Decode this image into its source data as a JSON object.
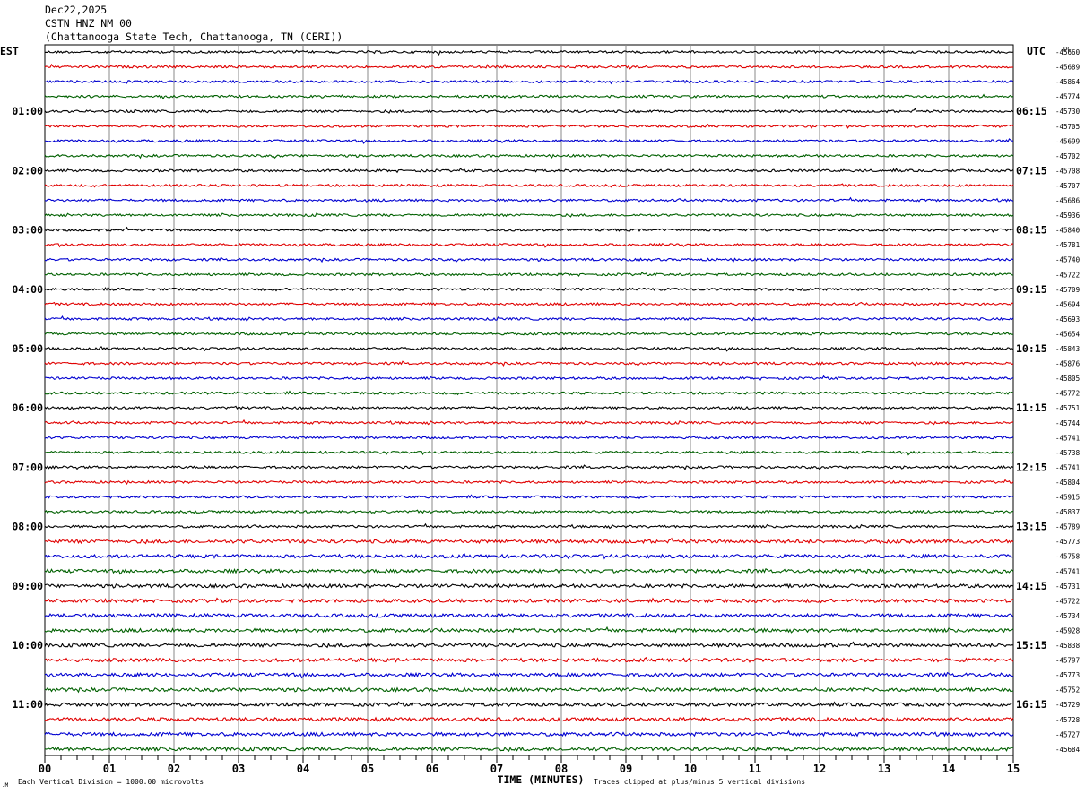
{
  "header": {
    "date": "Dec22,2025",
    "station": "CSTN HNZ NM 00",
    "location": "(Chattanooga State Tech, Chattanooga, TN (CERI))"
  },
  "timezones": {
    "left": "EST",
    "right": "UTC",
    "dc_label": "DC"
  },
  "footer": {
    "scale_note": "Each Vertical Division = 1000.00 microvolts",
    "xlabel": "TIME (MINUTES)",
    "clip_note": "Traces clipped at plus/minus 5 vertical divisions"
  },
  "colors": {
    "cycle": [
      "#000000",
      "#e00000",
      "#0000d0",
      "#006000"
    ]
  },
  "chart_data": {
    "type": "line",
    "title": "CSTN HNZ NM 00",
    "xlabel": "TIME (MINUTES)",
    "xlim": [
      0,
      15
    ],
    "x_ticks": [
      "00",
      "01",
      "02",
      "03",
      "04",
      "05",
      "06",
      "07",
      "08",
      "09",
      "10",
      "11",
      "12",
      "13",
      "14",
      "15"
    ],
    "left_hour_labels": [
      "01:00",
      "02:00",
      "03:00",
      "04:00",
      "05:00",
      "06:00",
      "07:00",
      "08:00",
      "09:00",
      "10:00",
      "11:00"
    ],
    "right_hour_labels": [
      "06:15",
      "07:15",
      "08:15",
      "09:15",
      "10:15",
      "11:15",
      "12:15",
      "13:15",
      "14:15",
      "15:15",
      "16:15"
    ],
    "dc_offsets": [
      "-45660",
      "-45689",
      "-45864",
      "-45774",
      "-45730",
      "-45705",
      "-45699",
      "-45702",
      "-45708",
      "-45707",
      "-45686",
      "-45936",
      "-45840",
      "-45781",
      "-45740",
      "-45722",
      "-45709",
      "-45694",
      "-45693",
      "-45654",
      "-45843",
      "-45876",
      "-45805",
      "-45772",
      "-45751",
      "-45744",
      "-45741",
      "-45738",
      "-45741",
      "-45804",
      "-45915",
      "-45837",
      "-45789",
      "-45773",
      "-45758",
      "-45741",
      "-45731",
      "-45722",
      "-45734",
      "-45928",
      "-45838",
      "-45797",
      "-45773",
      "-45752",
      "-45729",
      "-45728",
      "-45727",
      "-45684"
    ]
  }
}
